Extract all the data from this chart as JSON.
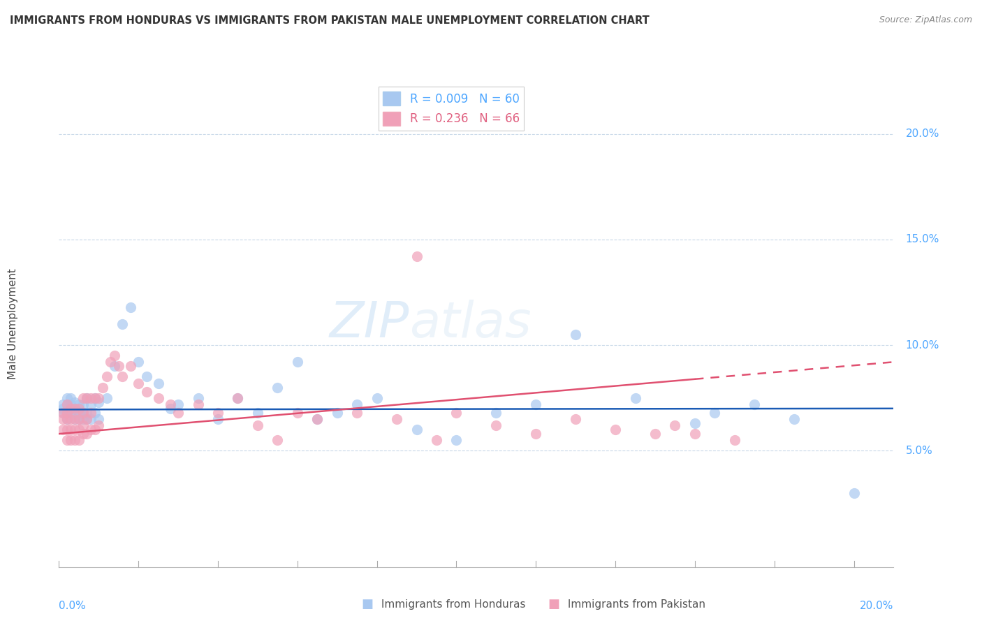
{
  "title": "IMMIGRANTS FROM HONDURAS VS IMMIGRANTS FROM PAKISTAN MALE UNEMPLOYMENT CORRELATION CHART",
  "source": "Source: ZipAtlas.com",
  "ylabel": "Male Unemployment",
  "yticks": [
    0.0,
    0.05,
    0.1,
    0.15,
    0.2
  ],
  "ytick_labels": [
    "",
    "5.0%",
    "10.0%",
    "15.0%",
    "20.0%"
  ],
  "xlim": [
    0.0,
    0.21
  ],
  "ylim": [
    -0.005,
    0.225
  ],
  "legend_r1": "R = 0.009",
  "legend_n1": "N = 60",
  "legend_r2": "R = 0.236",
  "legend_n2": "N = 66",
  "color_honduras": "#a8c8f0",
  "color_pakistan": "#f0a0b8",
  "color_line_honduras": "#1a5bb5",
  "color_line_pakistan": "#e05070",
  "color_tick_label": "#4da6ff",
  "color_grid": "#c8d8e8",
  "honduras_x": [
    0.001,
    0.001,
    0.001,
    0.002,
    0.002,
    0.002,
    0.002,
    0.003,
    0.003,
    0.003,
    0.003,
    0.004,
    0.004,
    0.004,
    0.004,
    0.005,
    0.005,
    0.005,
    0.006,
    0.006,
    0.006,
    0.007,
    0.007,
    0.007,
    0.008,
    0.008,
    0.009,
    0.009,
    0.01,
    0.01,
    0.012,
    0.014,
    0.016,
    0.018,
    0.02,
    0.022,
    0.025,
    0.028,
    0.03,
    0.035,
    0.04,
    0.045,
    0.05,
    0.055,
    0.06,
    0.065,
    0.07,
    0.075,
    0.08,
    0.09,
    0.1,
    0.11,
    0.12,
    0.13,
    0.145,
    0.16,
    0.165,
    0.175,
    0.185,
    0.2
  ],
  "honduras_y": [
    0.068,
    0.07,
    0.072,
    0.065,
    0.068,
    0.072,
    0.075,
    0.068,
    0.07,
    0.072,
    0.075,
    0.065,
    0.068,
    0.07,
    0.073,
    0.065,
    0.068,
    0.072,
    0.065,
    0.068,
    0.072,
    0.065,
    0.068,
    0.075,
    0.065,
    0.072,
    0.068,
    0.075,
    0.065,
    0.073,
    0.075,
    0.09,
    0.11,
    0.118,
    0.092,
    0.085,
    0.082,
    0.07,
    0.072,
    0.075,
    0.065,
    0.075,
    0.068,
    0.08,
    0.092,
    0.065,
    0.068,
    0.072,
    0.075,
    0.06,
    0.055,
    0.068,
    0.072,
    0.105,
    0.075,
    0.063,
    0.068,
    0.072,
    0.065,
    0.03
  ],
  "pakistan_x": [
    0.001,
    0.001,
    0.001,
    0.002,
    0.002,
    0.002,
    0.002,
    0.002,
    0.003,
    0.003,
    0.003,
    0.003,
    0.004,
    0.004,
    0.004,
    0.004,
    0.005,
    0.005,
    0.005,
    0.005,
    0.006,
    0.006,
    0.006,
    0.006,
    0.007,
    0.007,
    0.007,
    0.008,
    0.008,
    0.008,
    0.009,
    0.009,
    0.01,
    0.01,
    0.011,
    0.012,
    0.013,
    0.014,
    0.015,
    0.016,
    0.018,
    0.02,
    0.022,
    0.025,
    0.028,
    0.03,
    0.035,
    0.04,
    0.045,
    0.05,
    0.055,
    0.06,
    0.065,
    0.075,
    0.085,
    0.09,
    0.095,
    0.1,
    0.11,
    0.12,
    0.13,
    0.14,
    0.15,
    0.155,
    0.16,
    0.17
  ],
  "pakistan_y": [
    0.06,
    0.065,
    0.068,
    0.055,
    0.06,
    0.065,
    0.068,
    0.072,
    0.055,
    0.06,
    0.065,
    0.07,
    0.055,
    0.06,
    0.065,
    0.07,
    0.055,
    0.06,
    0.065,
    0.07,
    0.058,
    0.062,
    0.068,
    0.075,
    0.058,
    0.065,
    0.075,
    0.06,
    0.068,
    0.075,
    0.06,
    0.075,
    0.062,
    0.075,
    0.08,
    0.085,
    0.092,
    0.095,
    0.09,
    0.085,
    0.09,
    0.082,
    0.078,
    0.075,
    0.072,
    0.068,
    0.072,
    0.068,
    0.075,
    0.062,
    0.055,
    0.068,
    0.065,
    0.068,
    0.065,
    0.142,
    0.055,
    0.068,
    0.062,
    0.058,
    0.065,
    0.06,
    0.058,
    0.062,
    0.058,
    0.055
  ],
  "honduras_line": [
    0.0,
    0.21,
    0.0695,
    0.07
  ],
  "pakistan_line": [
    0.0,
    0.21,
    0.058,
    0.092
  ]
}
